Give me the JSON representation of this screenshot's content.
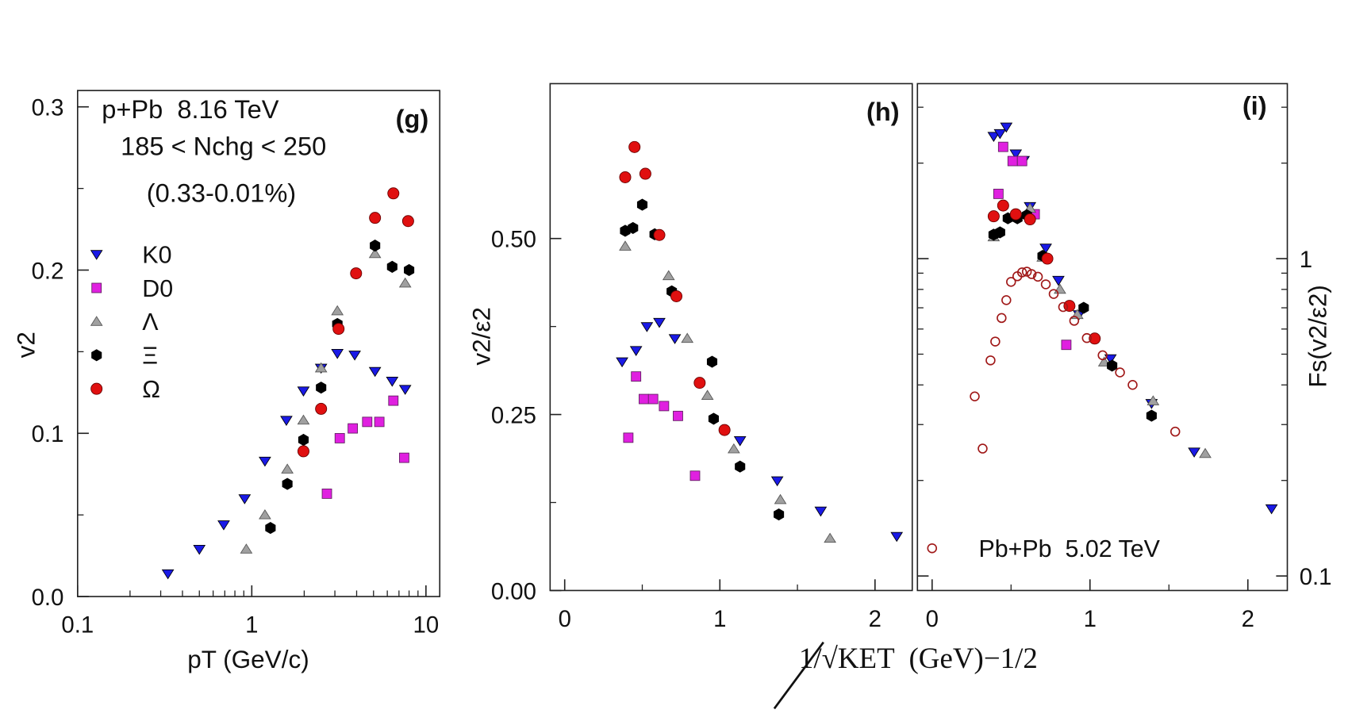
{
  "chart_data": [
    {
      "type": "scatter",
      "panel_label": "(g)",
      "annotations": [
        "p+Pb  8.16 TeV",
        "185 < Nchg < 250",
        "(0.33-0.01%)"
      ],
      "xlabel": "pT (GeV/c)",
      "ylabel": "v2",
      "xlim": [
        0.1,
        12
      ],
      "xlog": true,
      "xticks": [
        0.1,
        1,
        10
      ],
      "ylim": [
        0,
        0.31
      ],
      "yticks": [
        {
          "value": 0,
          "label": "0.0"
        },
        0.1,
        0.2,
        0.3
      ],
      "legend": "left",
      "series": [
        {
          "name": "K0",
          "color": "#1a1ae6",
          "marker": "triangle-down",
          "x": [
            0.33,
            0.5,
            0.69,
            0.91,
            1.19,
            1.58,
            1.98,
            2.5,
            3.1,
            3.9,
            5.1,
            6.4,
            7.6
          ],
          "values": [
            0.014,
            0.029,
            0.044,
            0.06,
            0.083,
            0.108,
            0.126,
            0.14,
            0.149,
            0.148,
            0.138,
            0.132,
            0.127
          ]
        },
        {
          "name": "D0",
          "color": "#e020e0",
          "marker": "square",
          "x": [
            2.7,
            3.2,
            3.8,
            4.6,
            5.4,
            6.5,
            7.5
          ],
          "values": [
            0.063,
            0.097,
            0.103,
            0.107,
            0.107,
            0.12,
            0.085
          ]
        },
        {
          "name": "Λ",
          "color": "#a0a0a0",
          "marker": "triangle-up",
          "x": [
            0.93,
            1.19,
            1.6,
            1.98,
            2.5,
            3.1,
            5.1,
            7.6
          ],
          "values": [
            0.029,
            0.05,
            0.078,
            0.108,
            0.14,
            0.175,
            0.21,
            0.192
          ]
        },
        {
          "name": "Ξ",
          "color": "#000000",
          "marker": "hexagon",
          "x": [
            1.28,
            1.6,
            1.98,
            2.5,
            3.1,
            5.1,
            6.4,
            8.0
          ],
          "values": [
            0.042,
            0.069,
            0.096,
            0.128,
            0.167,
            0.215,
            0.202,
            0.2
          ]
        },
        {
          "name": "Ω",
          "color": "#e01010",
          "marker": "circle",
          "x": [
            1.98,
            2.5,
            3.15,
            3.97,
            5.1,
            6.5,
            7.9
          ],
          "values": [
            0.089,
            0.115,
            0.164,
            0.198,
            0.232,
            0.247,
            0.23
          ]
        }
      ]
    },
    {
      "type": "scatter",
      "panel_label": "(h)",
      "xlabel": "1/√KET  (GeV)−1/2",
      "ylabel": "v2/ε2",
      "xlim": [
        -0.094,
        2.24
      ],
      "xticks": [
        0,
        1,
        2
      ],
      "ylim": [
        0,
        0.72
      ],
      "yticks": [
        {
          "value": 0,
          "label": "0.00"
        },
        {
          "value": 0.25,
          "label": "0.25"
        },
        {
          "value": 0.5,
          "label": "0.50"
        }
      ],
      "series": [
        {
          "color": "#1a1ae6",
          "marker": "triangle-down",
          "x": [
            0.37,
            0.46,
            0.53,
            0.61,
            0.71,
            1.13,
            1.37,
            1.65,
            2.14
          ],
          "values": [
            0.325,
            0.341,
            0.375,
            0.381,
            0.358,
            0.213,
            0.156,
            0.113,
            0.077
          ]
        },
        {
          "color": "#e020e0",
          "marker": "square",
          "x": [
            0.41,
            0.46,
            0.51,
            0.57,
            0.64,
            0.73,
            0.84
          ],
          "values": [
            0.217,
            0.304,
            0.272,
            0.272,
            0.262,
            0.248,
            0.163
          ]
        },
        {
          "color": "#a0a0a0",
          "marker": "triangle-up",
          "x": [
            0.39,
            0.67,
            0.79,
            0.92,
            1.09,
            1.39,
            1.71
          ],
          "values": [
            0.489,
            0.447,
            0.358,
            0.277,
            0.201,
            0.129,
            0.074
          ]
        },
        {
          "color": "#000000",
          "marker": "hexagon",
          "x": [
            0.39,
            0.44,
            0.5,
            0.58,
            0.69,
            0.95,
            0.96,
            1.13,
            1.38
          ],
          "values": [
            0.511,
            0.515,
            0.548,
            0.506,
            0.425,
            0.325,
            0.244,
            0.176,
            0.108
          ]
        },
        {
          "color": "#e01010",
          "marker": "circle",
          "x": [
            0.39,
            0.45,
            0.52,
            0.61,
            0.72,
            0.87,
            1.03
          ],
          "values": [
            0.587,
            0.63,
            0.592,
            0.505,
            0.418,
            0.295,
            0.228
          ]
        }
      ]
    },
    {
      "type": "scatter",
      "panel_label": "(i)",
      "ylabel": "Fs(v2/ε2)",
      "yaxis": "right",
      "xlim": [
        -0.093,
        2.25
      ],
      "xticks": [
        0,
        1,
        2
      ],
      "ylim": [
        0.09,
        3.56
      ],
      "ylog": true,
      "yticks": [
        0.1,
        1
      ],
      "legend": "lower left",
      "series": [
        {
          "color": "#1a1ae6",
          "marker": "triangle-down",
          "x": [
            0.39,
            0.43,
            0.47,
            0.53,
            0.58,
            0.62,
            0.72,
            0.8,
            0.93,
            1.13,
            1.39,
            1.66,
            2.15
          ],
          "values": [
            2.43,
            2.48,
            2.6,
            2.14,
            2.04,
            1.46,
            1.08,
            0.855,
            0.666,
            0.484,
            0.35,
            0.246,
            0.163
          ]
        },
        {
          "color": "#e020e0",
          "marker": "square",
          "x": [
            0.42,
            0.45,
            0.51,
            0.57,
            0.65,
            0.85
          ],
          "values": [
            1.6,
            2.25,
            2.03,
            2.03,
            1.38,
            0.535
          ]
        },
        {
          "color": "#a0a0a0",
          "marker": "triangle-up",
          "x": [
            0.39,
            0.62,
            0.7,
            0.81,
            0.92,
            1.09,
            1.4,
            1.73
          ],
          "values": [
            1.17,
            1.44,
            1.01,
            0.8,
            0.666,
            0.472,
            0.356,
            0.243
          ]
        },
        {
          "color": "#000000",
          "marker": "hexagon",
          "x": [
            0.39,
            0.43,
            0.48,
            0.54,
            0.6,
            0.7,
            0.96,
            1.14,
            1.39
          ],
          "values": [
            1.19,
            1.21,
            1.34,
            1.34,
            1.37,
            1.02,
            0.7,
            0.46,
            0.32
          ]
        },
        {
          "color": "#e01010",
          "marker": "circle",
          "x": [
            0.39,
            0.45,
            0.53,
            0.62,
            0.73,
            0.87,
            1.03
          ],
          "values": [
            1.36,
            1.47,
            1.38,
            1.33,
            1.0,
            0.71,
            0.56
          ]
        },
        {
          "name": "Pb+Pb  5.02 TeV",
          "color": "#a01818",
          "marker": "circle-open",
          "x": [
            0.27,
            0.32,
            0.37,
            0.4,
            0.44,
            0.47,
            0.5,
            0.54,
            0.57,
            0.6,
            0.63,
            0.67,
            0.72,
            0.77,
            0.83,
            0.9,
            0.98,
            1.08,
            1.19,
            1.27,
            1.54
          ],
          "values": [
            0.368,
            0.252,
            0.478,
            0.548,
            0.65,
            0.74,
            0.845,
            0.88,
            0.905,
            0.91,
            0.894,
            0.877,
            0.83,
            0.774,
            0.704,
            0.637,
            0.562,
            0.496,
            0.438,
            0.4,
            0.285
          ]
        }
      ]
    }
  ]
}
